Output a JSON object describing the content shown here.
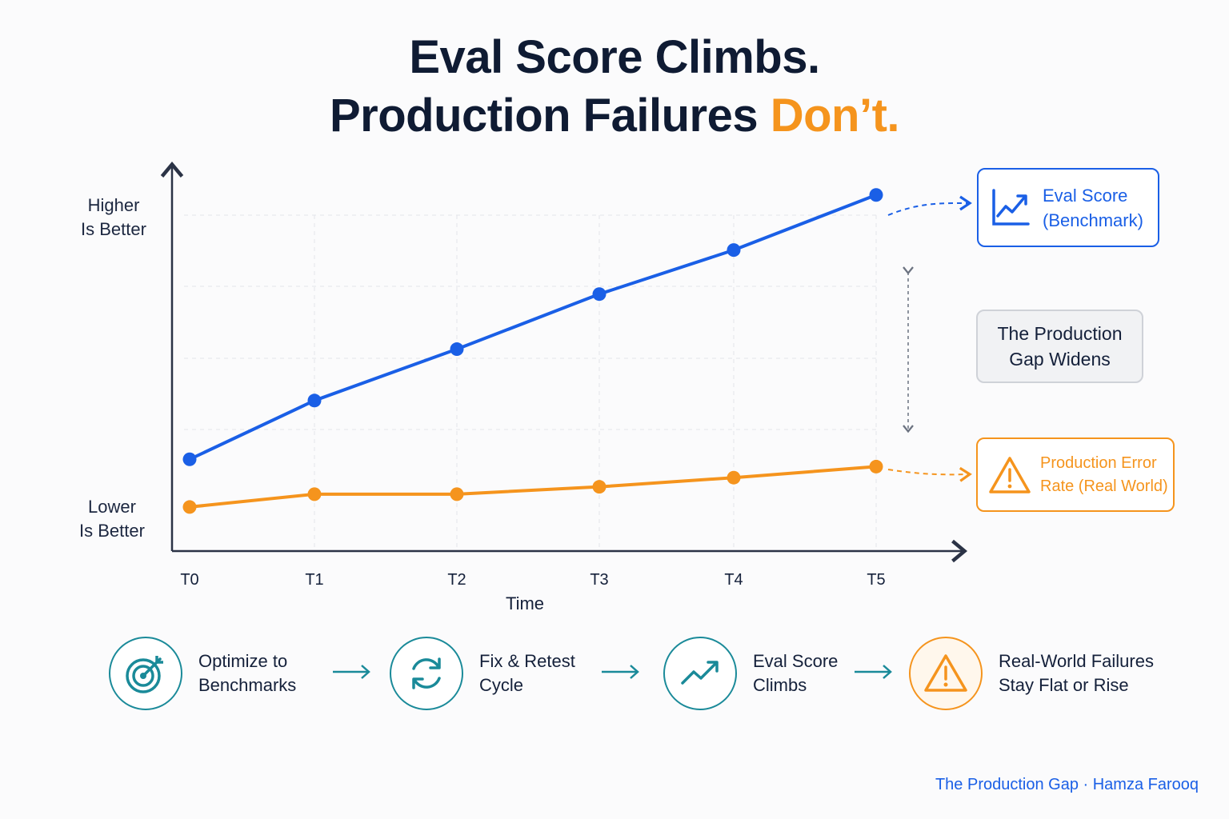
{
  "title": {
    "line1": "Eval Score Climbs.",
    "line2_prefix": "Production Failures ",
    "line2_accent": "Don’t."
  },
  "colors": {
    "eval": "#1a5fe6",
    "error": "#f5941d",
    "teal": "#1a8a99",
    "axis": "#2b3346"
  },
  "chart_data": {
    "type": "line",
    "x": [
      "T0",
      "T1",
      "T2",
      "T3",
      "T4",
      "T5"
    ],
    "xlabel": "Time",
    "y_top_label": "Higher Is Better",
    "y_bottom_label": "Lower Is Better",
    "ylim": [
      0,
      100
    ],
    "grid": true,
    "series": [
      {
        "name": "Eval Score (Benchmark)",
        "color": "#1a5fe6",
        "values": [
          25,
          41,
          55,
          70,
          82,
          97
        ]
      },
      {
        "name": "Production Error Rate (Real World)",
        "color": "#f5941d",
        "values": [
          12,
          15.5,
          15.5,
          17.5,
          20,
          23
        ]
      }
    ],
    "annotation": "The Production Gap Widens"
  },
  "axis_notes": {
    "higher_line1": "Higher",
    "higher_line2": "Is Better",
    "lower_line1": "Lower",
    "lower_line2": "Is Better"
  },
  "legend": {
    "eval_line1": "Eval Score",
    "eval_line2": "(Benchmark)",
    "error_line1": "Production Error",
    "error_line2": "Rate (Real World)",
    "gap_line1": "The Production",
    "gap_line2": "Gap Widens"
  },
  "steps": [
    {
      "line1": "Optimize to",
      "line2": "Benchmarks",
      "icon": "target-icon"
    },
    {
      "line1": "Fix & Retest",
      "line2": "Cycle",
      "icon": "refresh-icon"
    },
    {
      "line1": "Eval Score",
      "line2": "Climbs",
      "icon": "trend-up-icon"
    },
    {
      "line1": "Real-World Failures",
      "line2": "Stay Flat or Rise",
      "icon": "warning-icon"
    }
  ],
  "footer": "The Production Gap · Hamza Farooq"
}
